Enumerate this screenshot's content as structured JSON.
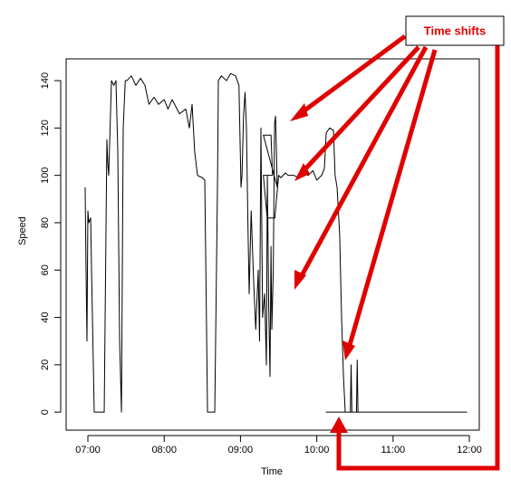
{
  "chart_data": {
    "type": "line",
    "x_label": "Time",
    "y_label": "Speed",
    "annotation": "Time shifts",
    "xlim": [
      6.715,
      12.13
    ],
    "ylim": [
      -7.6,
      149.2
    ],
    "xticks": [
      {
        "value": 7,
        "label": "07:00"
      },
      {
        "value": 8,
        "label": "08:00"
      },
      {
        "value": 9,
        "label": "09:00"
      },
      {
        "value": 10,
        "label": "10:00"
      },
      {
        "value": 11,
        "label": "11:00"
      },
      {
        "value": 12,
        "label": "12:00"
      }
    ],
    "yticks": [
      0,
      20,
      40,
      60,
      80,
      100,
      120,
      140
    ],
    "series": [
      {
        "color": "#000000",
        "x": [
          6.964,
          6.976,
          6.988,
          7.0,
          7.012,
          7.036,
          7.048,
          7.083,
          7.119,
          7.214,
          7.249,
          7.261,
          7.273,
          7.309,
          7.34,
          7.368,
          7.392,
          7.416,
          7.44,
          7.463,
          7.49,
          7.511,
          7.57,
          7.629,
          7.69,
          7.748,
          7.8,
          7.867,
          7.926,
          8.0,
          8.05,
          8.105,
          8.2,
          8.283,
          8.33,
          8.366,
          8.4,
          8.437,
          8.5,
          8.532,
          8.55,
          8.568,
          8.663,
          8.7,
          8.71,
          8.75,
          8.817,
          8.87,
          8.936,
          8.98,
          9.007,
          9.02,
          9.04,
          9.06,
          9.078,
          9.1,
          9.114,
          9.14,
          9.173,
          9.2,
          9.233,
          9.25,
          9.268,
          9.29,
          9.316,
          9.34,
          9.352,
          9.37,
          9.387,
          9.4,
          9.411,
          9.43,
          9.447,
          9.46,
          9.482,
          9.3,
          9.4,
          9.42,
          9.3,
          9.35,
          9.45,
          9.5,
          9.53,
          9.589,
          9.625,
          9.7,
          9.767,
          9.83,
          9.886,
          9.95,
          10.0,
          10.064,
          10.1,
          10.124,
          10.17,
          10.219,
          10.24,
          10.266,
          10.3,
          10.325,
          10.35,
          10.373,
          10.124,
          11.964,
          10.44,
          10.45,
          10.46,
          10.52,
          10.53,
          10.54
        ],
        "values": [
          95,
          60,
          30,
          85,
          80,
          82,
          60,
          0,
          0,
          0,
          115,
          105,
          100,
          140,
          138,
          140,
          110,
          30,
          0,
          120,
          140,
          140,
          142,
          138,
          141,
          138,
          130,
          133,
          130,
          132,
          128,
          132,
          126,
          128,
          120,
          130,
          110,
          100,
          99,
          98,
          50,
          0,
          0,
          100,
          140,
          142,
          140,
          143,
          142,
          138,
          95,
          100,
          125,
          135,
          120,
          75,
          50,
          85,
          55,
          35,
          60,
          30,
          120,
          40,
          50,
          20,
          100,
          45,
          15,
          70,
          35,
          60,
          122,
          125,
          95,
          117,
          117,
          100,
          100,
          82,
          82,
          100,
          99,
          101,
          100,
          100,
          99,
          101,
          100,
          102,
          98,
          100,
          103,
          118,
          120,
          119,
          100,
          95,
          75,
          40,
          15,
          0,
          0,
          0,
          0,
          20,
          0,
          0,
          22,
          0
        ]
      }
    ]
  }
}
